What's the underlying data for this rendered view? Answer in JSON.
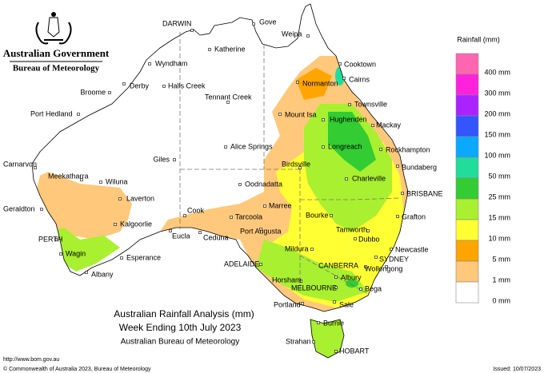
{
  "header": {
    "government": "Australian Government",
    "agency": "Bureau of Meteorology"
  },
  "map": {
    "places": [
      "DARWIN",
      "Gove",
      "Weipa",
      "Katherine",
      "Wyndham",
      "Cooktown",
      "Derby",
      "Halls Creek",
      "Normanton",
      "Cairns",
      "Broome",
      "Tennant Creek",
      "Townsville",
      "Port Hedland",
      "Mount Isa",
      "Hughenden",
      "Mackay",
      "Longreach",
      "Rockhampton",
      "Alice Springs",
      "Giles",
      "Carnarvon",
      "Birdsville",
      "Bundaberg",
      "Meekatharra",
      "Wiluna",
      "Charleville",
      "Oodnadatta",
      "BRISBANE",
      "Laverton",
      "Geraldton",
      "Marree",
      "Cook",
      "Bourke",
      "Grafton",
      "Tarcoola",
      "Kalgoorlie",
      "Tamworth",
      "Dubbo",
      "PERTH",
      "Eucla",
      "Ceduna",
      "Port Augusta",
      "Newcastle",
      "Mildura",
      "Wagin",
      "Esperance",
      "SYDNEY",
      "ADELAIDE",
      "CANBERRA",
      "Wollongong",
      "Albany",
      "Albury",
      "Horsham",
      "MELBOURNE",
      "Bega",
      "Portland",
      "Sale",
      "Burnie",
      "Strahan",
      "HOBART"
    ]
  },
  "legend": {
    "title": "Rainfall (mm)",
    "colors": [
      "#ff66b2",
      "#ff22dd",
      "#aa22ff",
      "#3355ff",
      "#0aa8ff",
      "#22dd99",
      "#33cc33",
      "#a8f030",
      "#ffff33",
      "#ffa500",
      "#ffc87a",
      "#ffffff"
    ],
    "labels": [
      "400 mm",
      "300 mm",
      "200 mm",
      "150 mm",
      "100 mm",
      "50 mm",
      "25 mm",
      "15 mm",
      "10 mm",
      "5 mm",
      "1 mm",
      "0 mm"
    ]
  },
  "caption": {
    "line1": "Australian Rainfall Analysis (mm)",
    "line2": "Week Ending 10th July 2023",
    "line3": "Australian Bureau of Meteorology"
  },
  "footer": {
    "url": "http://www.bom.gov.au",
    "copyright": "© Commonwealth of Australia 2023, Bureau of Meteorology",
    "issued": "Issued: 10/07/2023"
  }
}
